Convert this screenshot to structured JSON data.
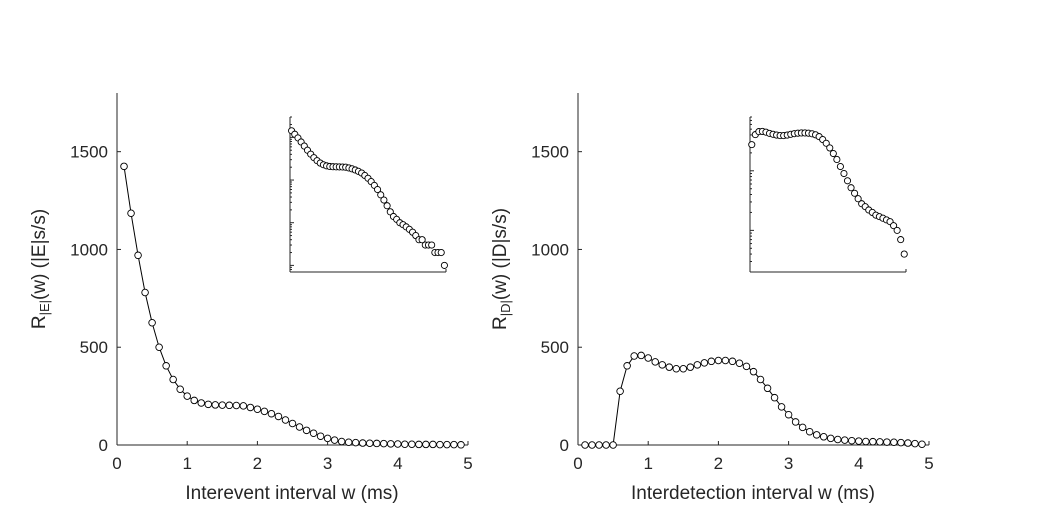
{
  "chart_data": [
    {
      "type": "line",
      "panel": "left",
      "xlabel": "Interevent interval w (ms)",
      "ylabel": {
        "base": "R",
        "subscript": "|E|",
        "rest": "(w) (|E|s/s)"
      },
      "xlim": [
        0,
        5
      ],
      "ylim": [
        0,
        1800
      ],
      "xticks": [
        "0",
        "1",
        "2",
        "3",
        "4",
        "5"
      ],
      "yticks": [
        "0",
        "500",
        "1000",
        "1500"
      ],
      "marker": "open-circle",
      "color": "#000000",
      "x": [
        0.1,
        0.2,
        0.3,
        0.4,
        0.5,
        0.6,
        0.7,
        0.8,
        0.9,
        1.0,
        1.1,
        1.2,
        1.3,
        1.4,
        1.5,
        1.6,
        1.7,
        1.8,
        1.9,
        2.0,
        2.1,
        2.2,
        2.3,
        2.4,
        2.5,
        2.6,
        2.7,
        2.8,
        2.9,
        3.0,
        3.1,
        3.2,
        3.3,
        3.4,
        3.5,
        3.6,
        3.7,
        3.8,
        3.9,
        4.0,
        4.1,
        4.2,
        4.3,
        4.4,
        4.5,
        4.6,
        4.7,
        4.8,
        4.9
      ],
      "y": [
        1425,
        1185,
        970,
        780,
        625,
        500,
        405,
        335,
        285,
        250,
        228,
        215,
        208,
        205,
        204,
        203,
        202,
        200,
        192,
        183,
        172,
        160,
        146,
        128,
        110,
        92,
        75,
        60,
        45,
        34,
        25,
        18,
        14,
        12,
        10,
        9,
        8,
        7,
        6,
        5,
        4,
        4,
        3,
        3,
        3,
        2,
        2,
        2,
        1
      ],
      "inset": {
        "scale": "log",
        "values": [
          1425,
          1185,
          970,
          780,
          625,
          500,
          405,
          335,
          285,
          250,
          228,
          215,
          208,
          205,
          204,
          203,
          202,
          200,
          192,
          183,
          172,
          160,
          146,
          128,
          110,
          92,
          75,
          60,
          45,
          34,
          25,
          18,
          14,
          12,
          10,
          9,
          8,
          7,
          6,
          5,
          4,
          4,
          3,
          3,
          3,
          2,
          2,
          2,
          1
        ]
      }
    },
    {
      "type": "line",
      "panel": "right",
      "xlabel": "Interdetection interval w (ms)",
      "ylabel": {
        "base": "R",
        "subscript": "|D|",
        "rest": "(w) (|D|s/s)"
      },
      "xlim": [
        0,
        5
      ],
      "ylim": [
        0,
        1800
      ],
      "xticks": [
        "0",
        "1",
        "2",
        "3",
        "4",
        "5"
      ],
      "yticks": [
        "0",
        "500",
        "1000",
        "1500"
      ],
      "marker": "open-circle",
      "color": "#000000",
      "x": [
        0.1,
        0.2,
        0.3,
        0.4,
        0.5,
        0.6,
        0.7,
        0.8,
        0.9,
        1.0,
        1.1,
        1.2,
        1.3,
        1.4,
        1.5,
        1.6,
        1.7,
        1.8,
        1.9,
        2.0,
        2.1,
        2.2,
        2.3,
        2.4,
        2.5,
        2.6,
        2.7,
        2.8,
        2.9,
        3.0,
        3.1,
        3.2,
        3.3,
        3.4,
        3.5,
        3.6,
        3.7,
        3.8,
        3.9,
        4.0,
        4.1,
        4.2,
        4.3,
        4.4,
        4.5,
        4.6,
        4.7,
        4.8,
        4.9
      ],
      "y": [
        0,
        0,
        0,
        0,
        0,
        275,
        405,
        455,
        458,
        445,
        425,
        410,
        398,
        390,
        390,
        398,
        410,
        420,
        428,
        432,
        432,
        428,
        418,
        402,
        375,
        335,
        290,
        242,
        195,
        155,
        118,
        90,
        68,
        52,
        42,
        34,
        28,
        25,
        22,
        20,
        18,
        17,
        16,
        15,
        14,
        12,
        10,
        7,
        4
      ],
      "inset": {
        "scale": "log",
        "x": [
          0.6,
          0.7,
          0.8,
          0.9,
          1.0,
          1.1,
          1.2,
          1.3,
          1.4,
          1.5,
          1.6,
          1.7,
          1.8,
          1.9,
          2.0,
          2.1,
          2.2,
          2.3,
          2.4,
          2.5,
          2.6,
          2.7,
          2.8,
          2.9,
          3.0,
          3.1,
          3.2,
          3.3,
          3.4,
          3.5,
          3.6,
          3.7,
          3.8,
          3.9,
          4.0,
          4.1,
          4.2,
          4.3,
          4.4,
          4.5,
          4.6,
          4.7,
          4.8,
          4.9
        ],
        "values": [
          275,
          405,
          455,
          458,
          445,
          425,
          410,
          398,
          390,
          390,
          398,
          410,
          420,
          428,
          432,
          432,
          428,
          418,
          402,
          375,
          335,
          290,
          242,
          195,
          155,
          118,
          90,
          68,
          52,
          42,
          34,
          28,
          25,
          22,
          20,
          18,
          17,
          16,
          15,
          14,
          12,
          10,
          7,
          4
        ]
      }
    }
  ]
}
